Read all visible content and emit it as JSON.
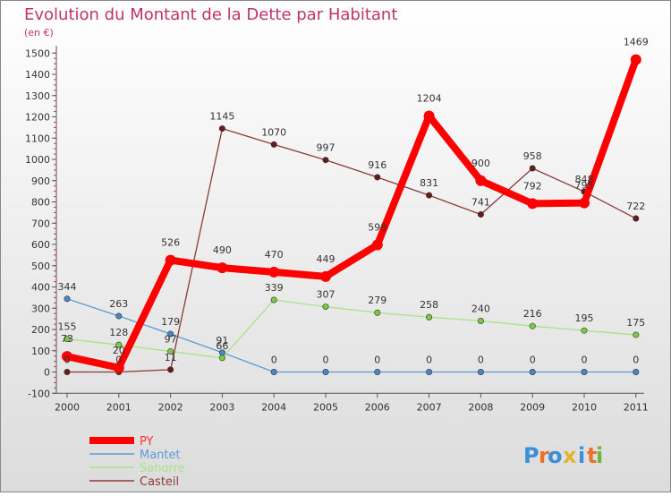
{
  "chart_data": {
    "type": "line",
    "title": "Evolution du Montant de la Dette par Habitant",
    "subtitle": "(en €)",
    "xlabel": "",
    "ylabel": "",
    "categories": [
      "2000",
      "2001",
      "2002",
      "2003",
      "2004",
      "2005",
      "2006",
      "2007",
      "2008",
      "2009",
      "2010",
      "2011"
    ],
    "ylim": [
      -100,
      1500
    ],
    "yticks": [
      -100,
      0,
      100,
      200,
      300,
      400,
      500,
      600,
      700,
      800,
      900,
      1000,
      1100,
      1200,
      1300,
      1400,
      1500
    ],
    "grid": false,
    "legend_position": "bottom-left",
    "series": [
      {
        "name": "PY",
        "color": "#ff0000",
        "marker_color": "#ff0000",
        "values": [
          73,
          20,
          526,
          490,
          470,
          449,
          598,
          1204,
          900,
          792,
          795,
          1469
        ]
      },
      {
        "name": "Mantet",
        "color": "#5b9bd5",
        "marker_color": "#4a86c8",
        "values": [
          344,
          263,
          179,
          91,
          0,
          0,
          0,
          0,
          0,
          0,
          0,
          0
        ]
      },
      {
        "name": "Sahorre",
        "color": "#a6e38a",
        "marker_color": "#77cc44",
        "values": [
          155,
          128,
          97,
          66,
          339,
          307,
          279,
          258,
          240,
          216,
          195,
          175
        ]
      },
      {
        "name": "Casteil",
        "color": "#8b3a3a",
        "marker_color": "#6b1a1a",
        "values": [
          0,
          0,
          11,
          1145,
          1070,
          997,
          916,
          831,
          741,
          958,
          848,
          722
        ]
      }
    ],
    "colors": {
      "title": "#c0336a",
      "axis": "#333333",
      "label": "#333333"
    }
  },
  "brand": {
    "letters": [
      "P",
      "r",
      "o",
      "x",
      "i",
      "t",
      "i"
    ],
    "colors": [
      "#3b8ed8",
      "#e8732a",
      "#3b8ed8",
      "#e2b42a",
      "#3b8ed8",
      "#e8732a",
      "#6cb33f"
    ]
  }
}
